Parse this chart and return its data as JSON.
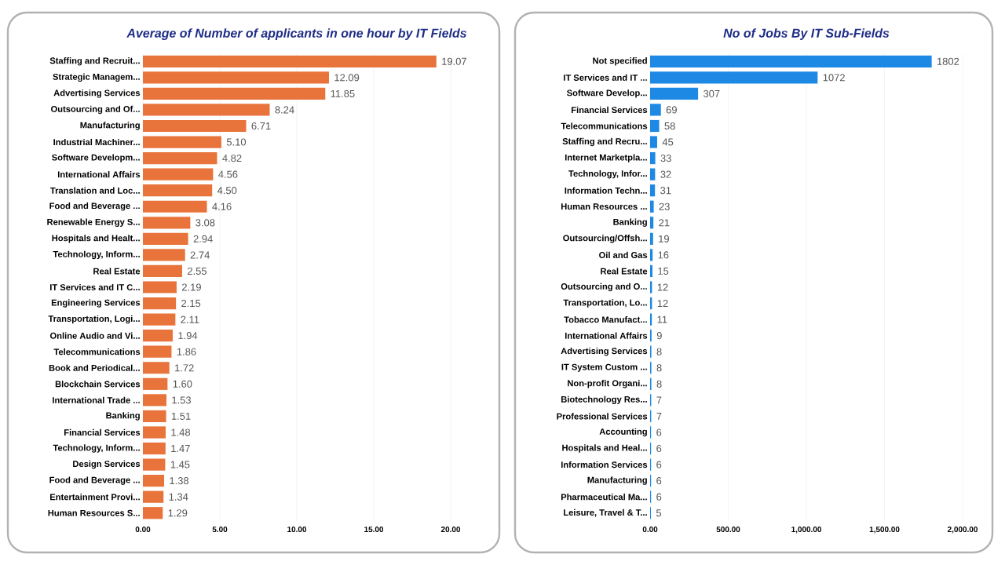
{
  "chart_data": [
    {
      "type": "bar",
      "orientation": "horizontal",
      "title": "Average of Number of applicants in one hour by IT Fields",
      "categories": [
        "Staffing and Recruit...",
        "Strategic Managem...",
        "Advertising Services",
        "Outsourcing and Of...",
        "Manufacturing",
        "Industrial Machiner...",
        "Software Developm...",
        "International Affairs",
        "Translation and Loc...",
        "Food and Beverage ...",
        "Renewable Energy S...",
        "Hospitals and Healt...",
        "Technology, Inform...",
        "Real Estate",
        "IT Services and IT C...",
        "Engineering Services",
        "Transportation, Logi...",
        "Online Audio and Vi...",
        "Telecommunications",
        "Book and Periodical...",
        "Blockchain Services",
        "International Trade ...",
        "Banking",
        "Financial Services",
        "Technology, Inform...",
        "Design Services",
        "Food and Beverage ...",
        "Entertainment Provi...",
        "Human Resources S..."
      ],
      "values": [
        19.07,
        12.09,
        11.85,
        8.24,
        6.71,
        5.1,
        4.82,
        4.56,
        4.5,
        4.16,
        3.08,
        2.94,
        2.74,
        2.55,
        2.19,
        2.15,
        2.11,
        1.94,
        1.86,
        1.72,
        1.6,
        1.53,
        1.51,
        1.48,
        1.47,
        1.45,
        1.38,
        1.34,
        1.29
      ],
      "value_labels": [
        "19.07",
        "12.09",
        "11.85",
        "8.24",
        "6.71",
        "5.10",
        "4.82",
        "4.56",
        "4.50",
        "4.16",
        "3.08",
        "2.94",
        "2.74",
        "2.55",
        "2.19",
        "2.15",
        "2.11",
        "1.94",
        "1.86",
        "1.72",
        "1.60",
        "1.53",
        "1.51",
        "1.48",
        "1.47",
        "1.45",
        "1.38",
        "1.34",
        "1.29"
      ],
      "color": "#e8743b",
      "xlim": [
        0,
        20
      ],
      "xticks": [
        {
          "value": 0,
          "label": "0.00"
        },
        {
          "value": 5,
          "label": "5.00"
        },
        {
          "value": 10,
          "label": "10.00"
        },
        {
          "value": 15,
          "label": "15.00"
        },
        {
          "value": 20,
          "label": "20.00"
        }
      ],
      "grid": "x"
    },
    {
      "type": "bar",
      "orientation": "horizontal",
      "title": "No of Jobs By IT Sub-Fields",
      "categories": [
        "Not specified",
        "IT Services and IT ...",
        "Software Develop...",
        "Financial Services",
        "Telecommunications",
        "Staffing and Recru...",
        "Internet Marketpla...",
        "Technology, Infor...",
        "Information Techn...",
        "Human Resources ...",
        "Banking",
        "Outsourcing/Offsh...",
        "Oil and Gas",
        "Real Estate",
        "Outsourcing and O...",
        "Transportation, Lo...",
        "Tobacco Manufact...",
        "International Affairs",
        "Advertising Services",
        "IT System Custom ...",
        "Non-profit Organi...",
        "Biotechnology Res...",
        "Professional Services",
        "Accounting",
        "Hospitals and Heal...",
        "Information Services",
        "Manufacturing",
        "Pharmaceutical Ma...",
        "Leisure, Travel & T..."
      ],
      "values": [
        1802,
        1072,
        307,
        69,
        58,
        45,
        33,
        32,
        31,
        23,
        21,
        19,
        16,
        15,
        12,
        12,
        11,
        9,
        8,
        8,
        8,
        7,
        7,
        6,
        6,
        6,
        6,
        6,
        5
      ],
      "data_labels": true,
      "color": "#1e88e5",
      "xlim": [
        0,
        2000
      ],
      "xticks": [
        {
          "value": 0,
          "label": "0.00"
        },
        {
          "value": 500,
          "label": "500.00"
        },
        {
          "value": 1000,
          "label": "1,000.00"
        },
        {
          "value": 1500,
          "label": "1,500.00"
        },
        {
          "value": 2000,
          "label": "2,000.00"
        }
      ],
      "grid": "x"
    }
  ]
}
